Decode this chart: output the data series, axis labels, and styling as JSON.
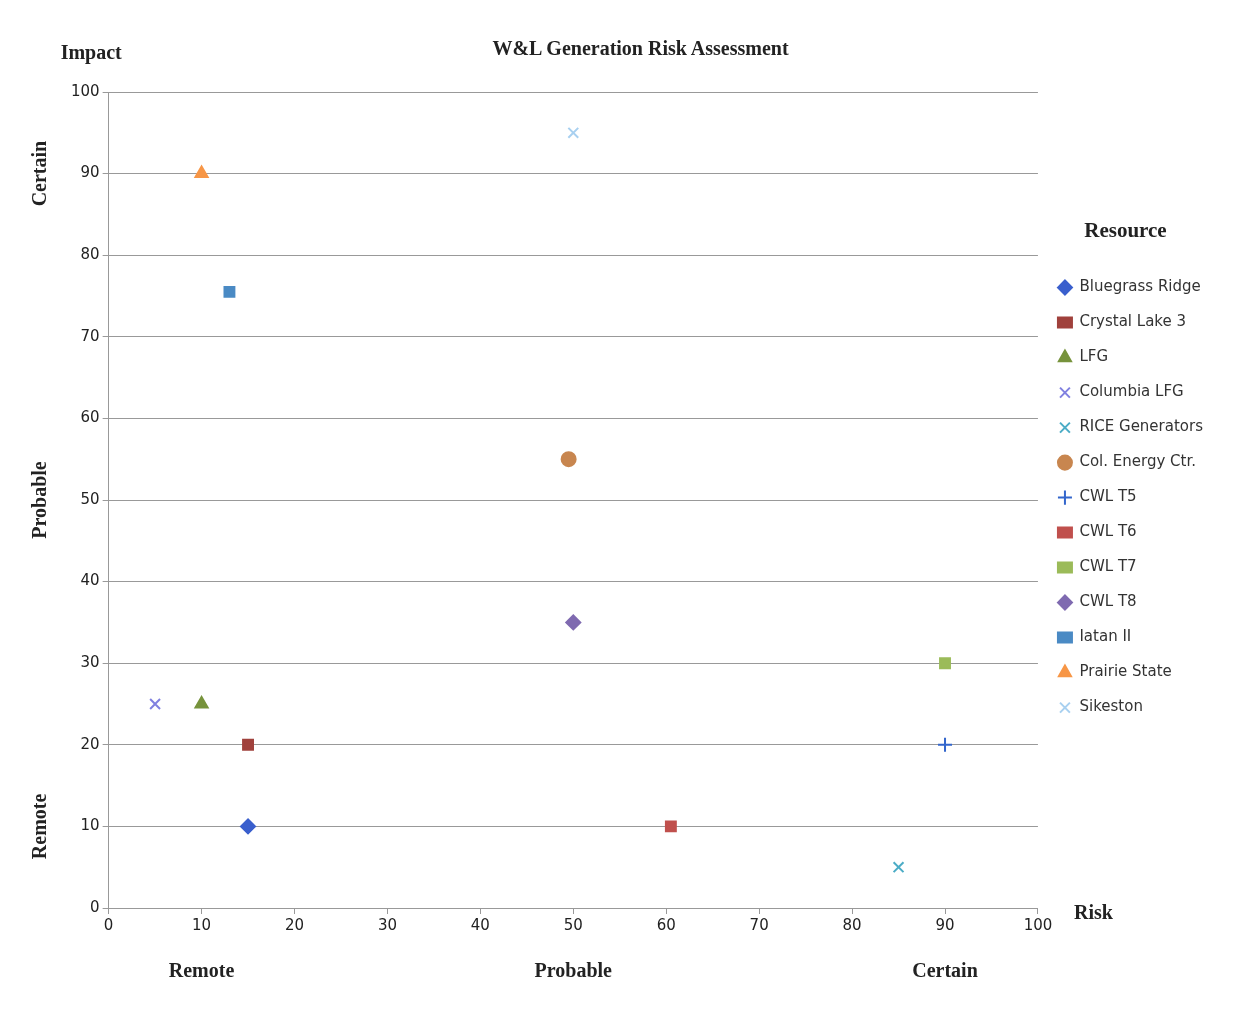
{
  "chart_data": {
    "type": "scatter",
    "title": "W&L Generation Risk Assessment",
    "xlabel": "Risk",
    "ylabel": "Impact",
    "legend_title": "Resource",
    "legend": "right",
    "annotations": [
      "Certain",
      "Probable",
      "Remote",
      "Remote",
      "Probable",
      "Certain"
    ],
    "xlim": [
      0,
      100
    ],
    "xticks": [
      0,
      10,
      20,
      30,
      40,
      50,
      60,
      70,
      80,
      90,
      100
    ],
    "ylim": [
      0,
      100
    ],
    "yticks": [
      0,
      10,
      20,
      30,
      40,
      50,
      60,
      70,
      80,
      90,
      100
    ],
    "grid": "y",
    "series": [
      {
        "name": "Bluegrass Ridge",
        "color": "#3a5fcd",
        "marker": "diamond",
        "x": [
          15
        ],
        "values": [
          10
        ]
      },
      {
        "name": "Crystal Lake 3",
        "color": "#a0413c",
        "marker": "square",
        "x": [
          15
        ],
        "values": [
          20
        ]
      },
      {
        "name": "LFG",
        "color": "#77933c",
        "marker": "triangle",
        "x": [
          10
        ],
        "values": [
          25
        ]
      },
      {
        "name": "Columbia LFG",
        "color": "#8080e0",
        "marker": "cross",
        "x": [
          5
        ],
        "values": [
          25
        ]
      },
      {
        "name": "RICE Generators",
        "color": "#4bacc6",
        "marker": "cross",
        "x": [
          85
        ],
        "values": [
          5
        ]
      },
      {
        "name": "Col. Energy Ctr.",
        "color": "#c8864f",
        "marker": "circle",
        "x": [
          49.5
        ],
        "values": [
          55
        ]
      },
      {
        "name": "CWL T5",
        "color": "#3366cc",
        "marker": "plus",
        "x": [
          90
        ],
        "values": [
          20
        ]
      },
      {
        "name": "CWL T6",
        "color": "#c0504d",
        "marker": "square",
        "x": [
          60.5
        ],
        "values": [
          10
        ]
      },
      {
        "name": "CWL T7",
        "color": "#9bbb59",
        "marker": "square",
        "x": [
          90
        ],
        "values": [
          30
        ]
      },
      {
        "name": "CWL T8",
        "color": "#7f6ab0",
        "marker": "diamond",
        "x": [
          50
        ],
        "values": [
          35
        ]
      },
      {
        "name": "Iatan II",
        "color": "#4a8ac4",
        "marker": "square",
        "x": [
          13
        ],
        "values": [
          75.5
        ]
      },
      {
        "name": "Prairie State",
        "color": "#f79646",
        "marker": "triangle",
        "x": [
          10
        ],
        "values": [
          90
        ]
      },
      {
        "name": "Sikeston",
        "color": "#a8d0f0",
        "marker": "cross",
        "x": [
          50
        ],
        "values": [
          95
        ]
      }
    ]
  }
}
